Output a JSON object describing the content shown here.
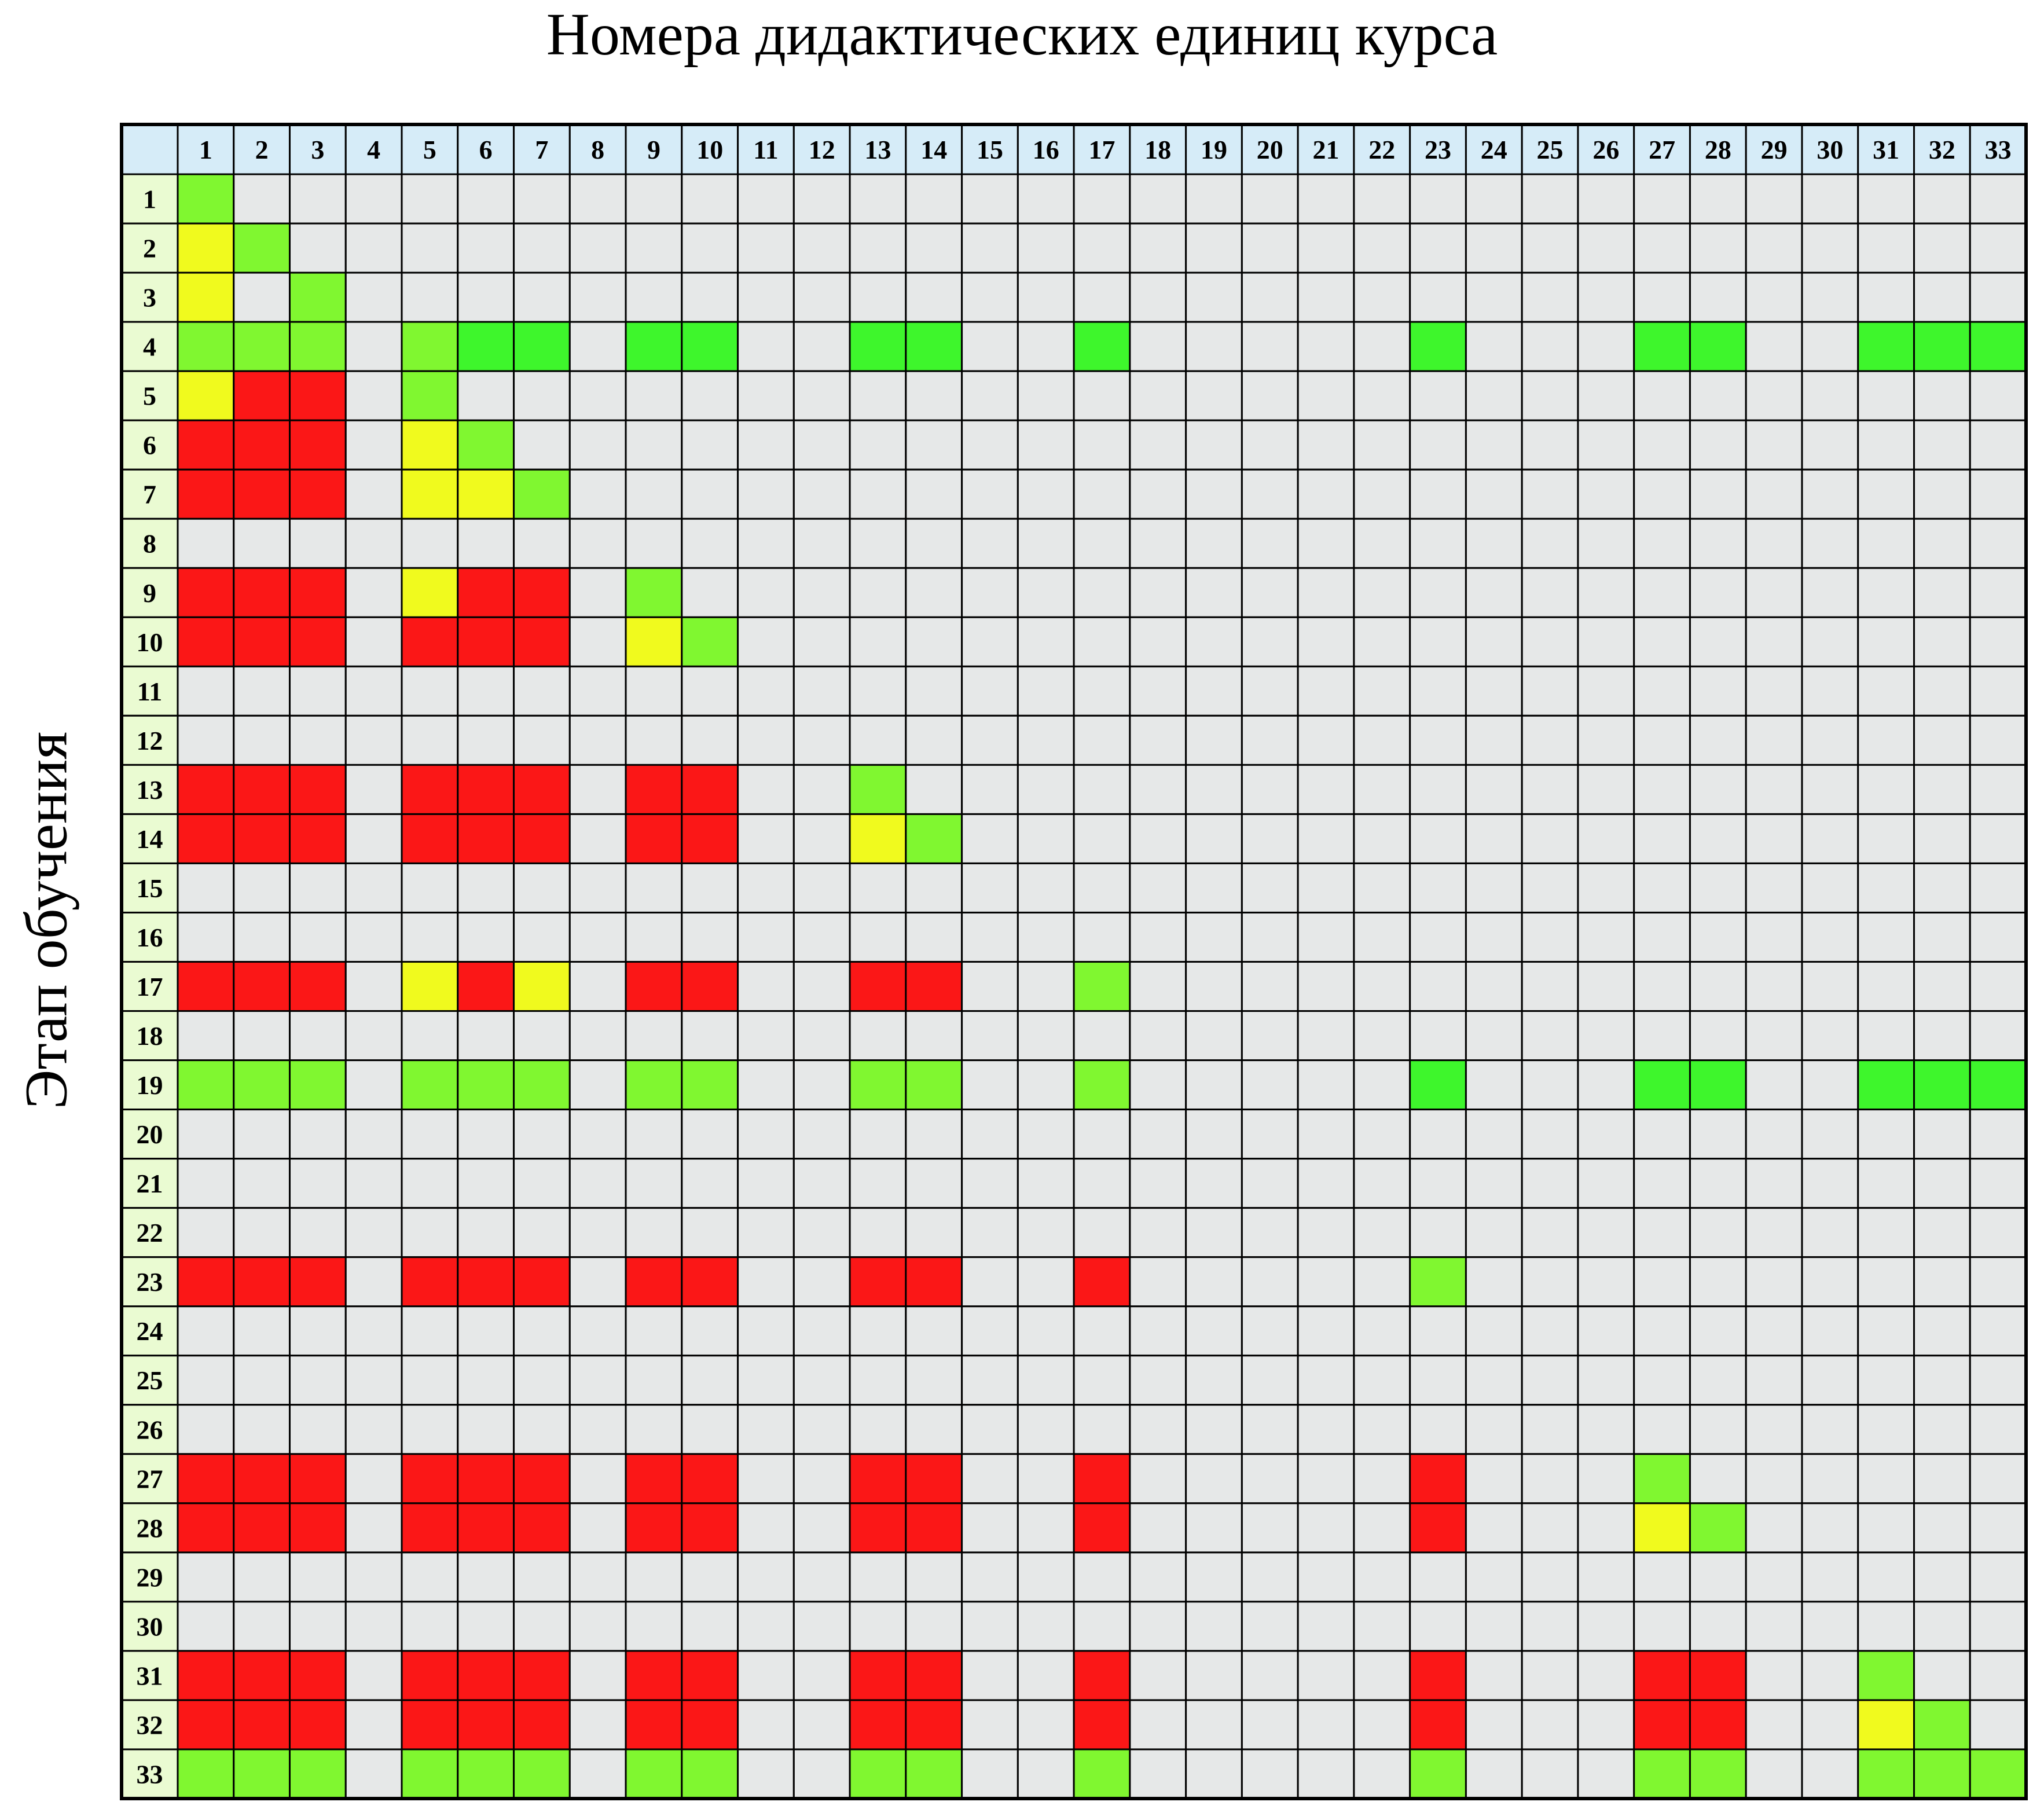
{
  "chart_data": {
    "type": "heatmap",
    "title": "Номера дидактических единиц курса",
    "ylabel": "Этап обучения",
    "columns": [
      "1",
      "2",
      "3",
      "4",
      "5",
      "6",
      "7",
      "8",
      "9",
      "10",
      "11",
      "12",
      "13",
      "14",
      "15",
      "16",
      "17",
      "18",
      "19",
      "20",
      "21",
      "22",
      "23",
      "24",
      "25",
      "26",
      "27",
      "28",
      "29",
      "30",
      "31",
      "32",
      "33"
    ],
    "rows": [
      "1",
      "2",
      "3",
      "4",
      "5",
      "6",
      "7",
      "8",
      "9",
      "10",
      "11",
      "12",
      "13",
      "14",
      "15",
      "16",
      "17",
      "18",
      "19",
      "20",
      "21",
      "22",
      "23",
      "24",
      "25",
      "26",
      "27",
      "28",
      "29",
      "30",
      "31",
      "32",
      "33"
    ],
    "legend_codes": {
      "0": "empty",
      "G": "light green",
      "B": "bright green",
      "Y": "yellow",
      "R": "red"
    },
    "colors": {
      "empty": "#e6e8e8",
      "light_green": "#80f730",
      "bright_green": "#3ef62c",
      "yellow": "#f0fa1e",
      "red": "#fb1717",
      "header": "#d6ecf8",
      "row_header": "#eafbd2",
      "grid": "#000000"
    },
    "cells": [
      "G00000000000000000000000000000000",
      "YG0000000000000000000000000000000",
      "Y0G000000000000000000000000000000",
      "GGG0GBB0BB00BB00B00000B000BB00BBB",
      "YRR0G0000000000000000000000000000",
      "RRR0YG000000000000000000000000000",
      "RRR0YYG00000000000000000000000000",
      "000000000000000000000000000000000",
      "RRR0YRR0G000000000000000000000000",
      "RRR0RRR0YG00000000000000000000000",
      "000000000000000000000000000000000",
      "000000000000000000000000000000000",
      "RRR0RRR0RR00G00000000000000000000",
      "RRR0RRR0RR00YG0000000000000000000",
      "000000000000000000000000000000000",
      "000000000000000000000000000000000",
      "RRR0YRY0RR00RR00G0000000000000000",
      "000000000000000000000000000000000",
      "GGG0GGG0GG00GG00G00000B000BB00BBB",
      "000000000000000000000000000000000",
      "000000000000000000000000000000000",
      "000000000000000000000000000000000",
      "RRR0RRR0RR00RR00R00000G0000000000",
      "000000000000000000000000000000000",
      "000000000000000000000000000000000",
      "000000000000000000000000000000000",
      "RRR0RRR0RR00RR00R00000R000G000000",
      "RRR0RRR0RR00RR00R00000R000YG00000",
      "000000000000000000000000000000000",
      "000000000000000000000000000000000",
      "RRR0RRR0RR00RR00R00000R000RR00G00",
      "RRR0RRR0RR00RR00R00000R000RR00YG0",
      "GGG0GGG0GG00GG00G00000G000GG00GGG"
    ]
  }
}
